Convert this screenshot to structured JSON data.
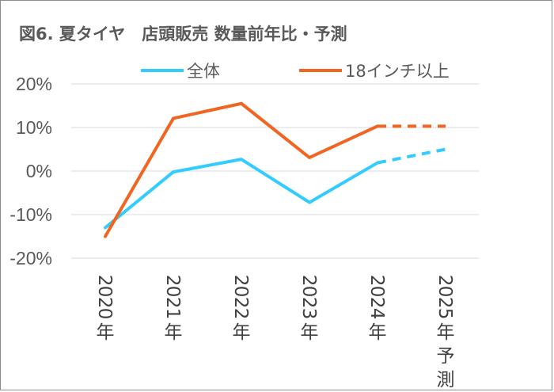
{
  "chart_data": {
    "type": "line",
    "title": "図6. 夏タイヤ　店頭販売 数量前年比・予測",
    "categories": [
      "2020年",
      "2021年",
      "2022年",
      "2023年",
      "2024年",
      "2025年予測"
    ],
    "y_ticks": [
      "20%",
      "10%",
      "0%",
      "-10%",
      "-20%"
    ],
    "ylim": [
      -20,
      20
    ],
    "grid": true,
    "legend_position": "top",
    "forecast_from_index": 4,
    "series": [
      {
        "name": "全体",
        "color": "#33ccff",
        "values": [
          -13,
          -0.2,
          2.7,
          -7.2,
          1.9,
          5.0
        ]
      },
      {
        "name": "18インチ以上",
        "color": "#f06522",
        "values": [
          -15,
          12.1,
          15.5,
          3.1,
          10.3,
          10.3
        ]
      }
    ]
  }
}
